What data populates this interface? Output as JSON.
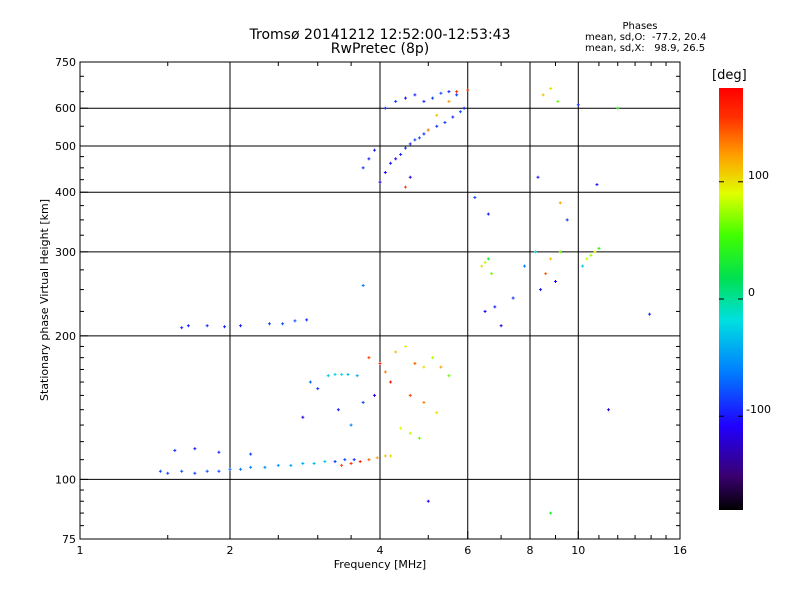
{
  "header": {
    "title_line1": "Tromsø 20141212 12:52:00-12:53:43",
    "title_line2": "RwPretec (8p)",
    "stats_title": "Phases",
    "stats_line1": "mean, sd,O:  -77.2, 20.4",
    "stats_line2": "mean, sd,X:   98.9, 26.5"
  },
  "colorbar": {
    "label": "[deg]",
    "ticks": [
      "100",
      "0",
      "-100"
    ],
    "tick_values": [
      100,
      0,
      -100
    ],
    "range": [
      -180,
      180
    ]
  },
  "chart_data": {
    "type": "scatter",
    "title": "Tromsø 20141212 12:52:00-12:53:43",
    "subtitle": "RwPretec (8p)",
    "xlabel": "Frequency [MHz]",
    "ylabel": "Stationary phase Virtual Height [km]",
    "xscale": "log",
    "yscale": "log",
    "xlim": [
      1,
      16
    ],
    "ylim": [
      75,
      750
    ],
    "x_ticks": [
      1,
      2,
      4,
      6,
      8,
      10,
      16
    ],
    "x_tick_labels": [
      "1",
      "2",
      "4",
      "6",
      "8",
      "10",
      "16"
    ],
    "y_ticks": [
      75,
      100,
      200,
      300,
      400,
      500,
      600,
      750
    ],
    "y_tick_labels": [
      "75",
      "100",
      "200",
      "300",
      "400",
      "500",
      "600",
      "750"
    ],
    "grid_x": [
      2,
      4,
      6,
      8,
      10
    ],
    "grid_y": [
      100,
      200,
      300,
      400,
      500,
      600
    ],
    "color_scale": "rainbow",
    "points": [
      [
        1.45,
        104,
        -80
      ],
      [
        1.5,
        103,
        -85
      ],
      [
        1.6,
        104,
        -78
      ],
      [
        1.7,
        103,
        -82
      ],
      [
        1.8,
        104,
        -75
      ],
      [
        1.9,
        104,
        -80
      ],
      [
        2.0,
        105,
        -70
      ],
      [
        2.1,
        105,
        -65
      ],
      [
        2.2,
        106,
        -60
      ],
      [
        2.35,
        106,
        -55
      ],
      [
        2.5,
        107,
        -50
      ],
      [
        2.65,
        107,
        -45
      ],
      [
        2.8,
        108,
        -40
      ],
      [
        2.95,
        108,
        -35
      ],
      [
        3.1,
        109,
        -30
      ],
      [
        3.25,
        109,
        -90
      ],
      [
        3.4,
        110,
        -85
      ],
      [
        3.55,
        110,
        -95
      ],
      [
        3.35,
        107,
        150
      ],
      [
        3.5,
        108,
        155
      ],
      [
        3.65,
        109,
        160
      ],
      [
        3.8,
        110,
        140
      ],
      [
        3.95,
        111,
        120
      ],
      [
        4.1,
        112,
        110
      ],
      [
        4.2,
        112,
        100
      ],
      [
        1.55,
        115,
        -90
      ],
      [
        1.7,
        116,
        -100
      ],
      [
        1.9,
        114,
        -95
      ],
      [
        2.2,
        113,
        -85
      ],
      [
        1.6,
        208,
        -95
      ],
      [
        1.65,
        210,
        -100
      ],
      [
        1.8,
        210,
        -90
      ],
      [
        1.95,
        209,
        -95
      ],
      [
        2.1,
        210,
        -100
      ],
      [
        2.4,
        212,
        -85
      ],
      [
        2.55,
        212,
        -80
      ],
      [
        2.7,
        215,
        -75
      ],
      [
        2.85,
        216,
        -95
      ],
      [
        3.15,
        165,
        -30
      ],
      [
        3.25,
        166,
        -25
      ],
      [
        3.35,
        166,
        -20
      ],
      [
        3.45,
        166,
        -35
      ],
      [
        3.6,
        165,
        -40
      ],
      [
        2.9,
        160,
        -70
      ],
      [
        3.0,
        155,
        -90
      ],
      [
        2.8,
        135,
        -120
      ],
      [
        3.3,
        140,
        -100
      ],
      [
        3.5,
        130,
        -60
      ],
      [
        3.7,
        145,
        -80
      ],
      [
        3.9,
        150,
        -110
      ],
      [
        3.7,
        255,
        -60
      ],
      [
        3.8,
        180,
        150
      ],
      [
        4.0,
        175,
        160
      ],
      [
        4.1,
        168,
        130
      ],
      [
        4.3,
        185,
        110
      ],
      [
        4.5,
        190,
        90
      ],
      [
        4.7,
        175,
        140
      ],
      [
        4.9,
        172,
        100
      ],
      [
        5.1,
        180,
        80
      ],
      [
        5.3,
        172,
        120
      ],
      [
        5.5,
        165,
        60
      ],
      [
        4.2,
        160,
        170
      ],
      [
        4.6,
        150,
        150
      ],
      [
        4.9,
        145,
        130
      ],
      [
        5.2,
        138,
        100
      ],
      [
        4.4,
        128,
        90
      ],
      [
        4.6,
        125,
        80
      ],
      [
        4.8,
        122,
        60
      ],
      [
        4.0,
        420,
        -120
      ],
      [
        4.1,
        440,
        -110
      ],
      [
        4.2,
        460,
        -100
      ],
      [
        4.3,
        470,
        -105
      ],
      [
        4.4,
        480,
        -95
      ],
      [
        4.5,
        495,
        -90
      ],
      [
        4.6,
        505,
        -95
      ],
      [
        4.7,
        515,
        -85
      ],
      [
        4.8,
        520,
        -80
      ],
      [
        4.9,
        530,
        -95
      ],
      [
        5.0,
        540,
        -100
      ],
      [
        5.2,
        550,
        -90
      ],
      [
        5.4,
        560,
        -85
      ],
      [
        5.6,
        575,
        -95
      ],
      [
        5.8,
        590,
        -80
      ],
      [
        4.1,
        600,
        -90
      ],
      [
        4.3,
        620,
        -85
      ],
      [
        4.5,
        630,
        -100
      ],
      [
        4.7,
        640,
        -95
      ],
      [
        4.9,
        620,
        -90
      ],
      [
        5.1,
        630,
        -85
      ],
      [
        5.3,
        645,
        -80
      ],
      [
        5.5,
        650,
        -95
      ],
      [
        5.7,
        640,
        -90
      ],
      [
        5.9,
        600,
        -100
      ],
      [
        3.7,
        450,
        -90
      ],
      [
        3.8,
        470,
        -95
      ],
      [
        3.9,
        490,
        -100
      ],
      [
        5.5,
        620,
        120
      ],
      [
        5.7,
        650,
        160
      ],
      [
        6.0,
        655,
        150
      ],
      [
        5.0,
        540,
        120
      ],
      [
        5.2,
        580,
        110
      ],
      [
        4.6,
        430,
        -120
      ],
      [
        4.5,
        410,
        150
      ],
      [
        6.4,
        280,
        100
      ],
      [
        6.5,
        285,
        80
      ],
      [
        6.6,
        290,
        30
      ],
      [
        6.7,
        270,
        60
      ],
      [
        6.5,
        225,
        -110
      ],
      [
        6.8,
        230,
        -100
      ],
      [
        7.0,
        210,
        -120
      ],
      [
        6.2,
        390,
        -80
      ],
      [
        6.6,
        360,
        -100
      ],
      [
        7.4,
        240,
        -90
      ],
      [
        7.8,
        280,
        -60
      ],
      [
        8.2,
        300,
        -20
      ],
      [
        8.4,
        250,
        -100
      ],
      [
        8.6,
        270,
        140
      ],
      [
        8.8,
        290,
        110
      ],
      [
        9.0,
        260,
        -110
      ],
      [
        9.2,
        300,
        60
      ],
      [
        8.5,
        640,
        110
      ],
      [
        8.8,
        660,
        100
      ],
      [
        9.1,
        620,
        60
      ],
      [
        8.3,
        430,
        -100
      ],
      [
        9.2,
        380,
        120
      ],
      [
        9.5,
        350,
        -90
      ],
      [
        10.4,
        290,
        80
      ],
      [
        10.6,
        295,
        70
      ],
      [
        10.8,
        300,
        90
      ],
      [
        11.0,
        305,
        40
      ],
      [
        10.2,
        280,
        -30
      ],
      [
        10.9,
        415,
        -100
      ],
      [
        12.0,
        600,
        40
      ],
      [
        8.8,
        85,
        30
      ],
      [
        5.0,
        90,
        -110
      ],
      [
        11.5,
        140,
        -120
      ],
      [
        13.9,
        222,
        -90
      ],
      [
        10.0,
        610,
        -90
      ]
    ]
  }
}
